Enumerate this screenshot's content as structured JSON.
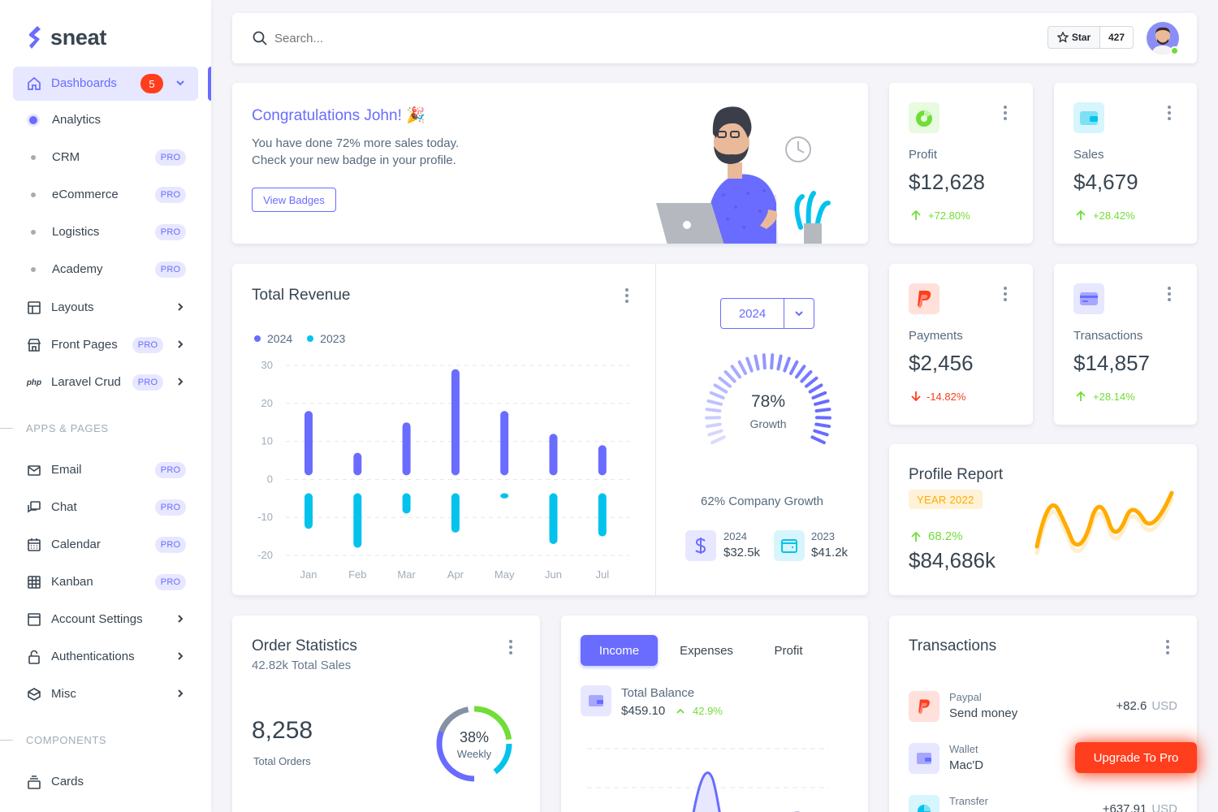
{
  "brand": {
    "name": "sneat"
  },
  "sidebar": {
    "dashboards": {
      "label": "Dashboards",
      "badge": "5"
    },
    "sub_items": [
      {
        "label": "Analytics",
        "pro": ""
      },
      {
        "label": "CRM",
        "pro": "PRO"
      },
      {
        "label": "eCommerce",
        "pro": "PRO"
      },
      {
        "label": "Logistics",
        "pro": "PRO"
      },
      {
        "label": "Academy",
        "pro": "PRO"
      }
    ],
    "items": [
      {
        "label": "Layouts"
      },
      {
        "label": "Front Pages",
        "pro": "PRO"
      },
      {
        "label": "Laravel Crud",
        "pro": "PRO",
        "icon_text": "php"
      }
    ],
    "section_apps": "APPS & PAGES",
    "apps": [
      {
        "label": "Email",
        "pro": "PRO"
      },
      {
        "label": "Chat",
        "pro": "PRO"
      },
      {
        "label": "Calendar",
        "pro": "PRO"
      },
      {
        "label": "Kanban",
        "pro": "PRO"
      },
      {
        "label": "Account Settings"
      },
      {
        "label": "Authentications"
      },
      {
        "label": "Misc"
      }
    ],
    "section_components": "COMPONENTS",
    "components": [
      {
        "label": "Cards"
      }
    ]
  },
  "topbar": {
    "search_placeholder": "Search...",
    "star_label": "Star",
    "star_count": "427"
  },
  "welcome": {
    "title": "Congratulations John! 🎉",
    "line1": "You have done 72% more sales today.",
    "line2": "Check your new badge in your profile.",
    "button": "View Badges"
  },
  "stats": [
    {
      "title": "Profit",
      "value": "$12,628",
      "change": "+72.80%",
      "dir": "up",
      "color": "#71dd37"
    },
    {
      "title": "Sales",
      "value": "$4,679",
      "change": "+28.42%",
      "dir": "up",
      "color": "#03c3ec"
    },
    {
      "title": "Payments",
      "value": "$2,456",
      "change": "-14.82%",
      "dir": "down",
      "color": "#ff3e1d"
    },
    {
      "title": "Transactions",
      "value": "$14,857",
      "change": "+28.14%",
      "dir": "up",
      "color": "#696cff"
    }
  ],
  "revenue": {
    "title": "Total Revenue",
    "year_select": "2024",
    "growth_pct": "78%",
    "growth_label": "Growth",
    "growth_value": 78,
    "company_growth": "62% Company Growth",
    "summary": [
      {
        "year": "2024",
        "amount": "$32.5k"
      },
      {
        "year": "2023",
        "amount": "$41.2k"
      }
    ]
  },
  "chart_data": {
    "type": "bar",
    "categories": [
      "Jan",
      "Feb",
      "Mar",
      "Apr",
      "May",
      "Jun",
      "Jul"
    ],
    "series": [
      {
        "name": "2024",
        "values": [
          18,
          7,
          15,
          29,
          18,
          12,
          9
        ],
        "color": "#696cff"
      },
      {
        "name": "2023",
        "values": [
          -13,
          -18,
          -9,
          -14,
          -5,
          -17,
          -15
        ],
        "color": "#03c3ec"
      }
    ],
    "yticks": [
      "30",
      "20",
      "10",
      "0",
      "-10",
      "-20"
    ],
    "ylim": [
      -20,
      30
    ],
    "legend": "top-left",
    "grid": true
  },
  "profile_report": {
    "title": "Profile Report",
    "badge": "YEAR 2022",
    "change": "68.2%",
    "value": "$84,686k"
  },
  "order_stats": {
    "title": "Order Statistics",
    "subtitle": "42.82k Total Sales",
    "value": "8,258",
    "label": "Total Orders",
    "donut_pct": "38%",
    "donut_label": "Weekly"
  },
  "income": {
    "tabs": [
      "Income",
      "Expenses",
      "Profit"
    ],
    "balance_label": "Total Balance",
    "balance": "$459.10",
    "change": "42.9%"
  },
  "transactions": {
    "title": "Transactions",
    "items": [
      {
        "kind": "Paypal",
        "desc": "Send money",
        "amount": "+82.6",
        "currency": "USD",
        "color": "#ff3e1d",
        "bg": "#ffe0db"
      },
      {
        "kind": "Wallet",
        "desc": "Mac'D",
        "amount": "",
        "currency": "",
        "color": "#696cff",
        "bg": "#e7e7ff"
      },
      {
        "kind": "Transfer",
        "desc": "",
        "amount": "+637.91",
        "currency": "USD",
        "color": "#03c3ec",
        "bg": "#d7f5fc"
      }
    ]
  },
  "upgrade": {
    "label": "Upgrade To Pro"
  }
}
